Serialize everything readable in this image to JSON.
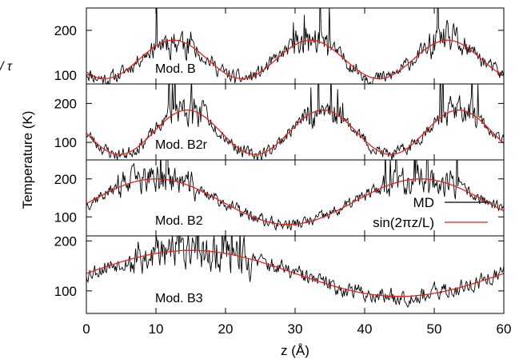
{
  "chart_data": {
    "type": "line",
    "ylabel": "Temperature (K)",
    "xlabel": "z (Å)",
    "xlim": [
      0,
      60
    ],
    "xticks": [
      "0",
      "10",
      "20",
      "30",
      "40",
      "50",
      "60"
    ],
    "legend": {
      "placement": "right of panel Mod. B2",
      "entries": [
        {
          "label": "MD",
          "color": "#000000"
        },
        {
          "label": "sin(2πz/L)",
          "color": "#e8201c"
        }
      ]
    },
    "stray_text": "/ τ",
    "panels": [
      {
        "label": "Mod. B",
        "ylim": [
          80,
          250
        ],
        "yticks": [
          "100",
          "200"
        ],
        "fit": {
          "mean": 135,
          "amplitude": 43,
          "period": 19.7,
          "peak_z": 12.5
        },
        "noise_seed": 11
      },
      {
        "label": "Mod. B2r",
        "ylim": [
          55,
          250
        ],
        "yticks": [
          "100",
          "200"
        ],
        "fit": {
          "mean": 126,
          "amplitude": 57,
          "period": 19.5,
          "peak_z": 14.5
        },
        "noise_seed": 23
      },
      {
        "label": "Mod. B2",
        "ylim": [
          50,
          250
        ],
        "yticks": [
          "200",
          "100"
        ],
        "fit": {
          "mean": 140,
          "amplitude": 60,
          "period": 38,
          "peak_z": 10
        },
        "noise_seed": 37
      },
      {
        "label": "Mod. B3",
        "ylim": [
          55,
          210
        ],
        "yticks": [
          "200",
          "100"
        ],
        "fit": {
          "mean": 135,
          "amplitude": 46,
          "period": 60,
          "peak_z": 15
        },
        "noise_seed": 53
      }
    ]
  }
}
